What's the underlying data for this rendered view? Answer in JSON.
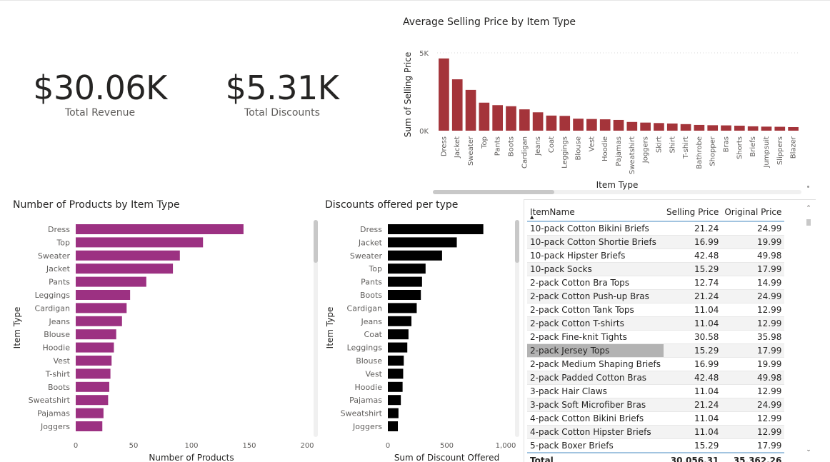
{
  "kpis": [
    {
      "value": "$30.06K",
      "label": "Total Revenue"
    },
    {
      "value": "$5.31K",
      "label": "Total Discounts"
    }
  ],
  "colors": {
    "avg_price": "#a4343a",
    "products": "#9c3182",
    "discounts": "#000000"
  },
  "chart_data": [
    {
      "type": "bar",
      "orientation": "vertical",
      "title": "Average Selling Price by Item Type",
      "xlabel": "Item Type",
      "ylabel": "Sum of Selling Price",
      "yticks": [
        "0K",
        "5K"
      ],
      "ylim": [
        0,
        5000
      ],
      "categories": [
        "Dress",
        "Jacket",
        "Sweater",
        "Top",
        "Pants",
        "Boots",
        "Cardigan",
        "Jeans",
        "Coat",
        "Leggings",
        "Blouse",
        "Vest",
        "Hoodie",
        "Pajamas",
        "Sweatshirt",
        "Joggers",
        "Skirt",
        "Shirt",
        "T-shirt",
        "Bathrobe",
        "Shopper",
        "Bras",
        "Shorts",
        "Briefs",
        "Jumpsuit",
        "Slippers",
        "Blazer"
      ],
      "values": [
        4640,
        3300,
        2620,
        1800,
        1640,
        1570,
        1370,
        1180,
        970,
        950,
        770,
        750,
        730,
        690,
        560,
        520,
        490,
        460,
        420,
        370,
        350,
        340,
        320,
        280,
        260,
        250,
        230
      ]
    },
    {
      "type": "bar",
      "orientation": "horizontal",
      "title": "Number of Products by Item Type",
      "xlabel": "Number of Products",
      "ylabel": "Item Type",
      "xticks": [
        0,
        50,
        100,
        150,
        200
      ],
      "xlim": [
        0,
        200
      ],
      "categories": [
        "Dress",
        "Top",
        "Sweater",
        "Jacket",
        "Pants",
        "Leggings",
        "Cardigan",
        "Jeans",
        "Blouse",
        "Hoodie",
        "Vest",
        "T-shirt",
        "Boots",
        "Sweatshirt",
        "Pajamas",
        "Joggers"
      ],
      "values": [
        145,
        110,
        90,
        84,
        61,
        47,
        44,
        40,
        35,
        33,
        31,
        30,
        29,
        28,
        24,
        23
      ]
    },
    {
      "type": "bar",
      "orientation": "horizontal",
      "title": "Discounts offered per type",
      "xlabel": "Sum of Discount Offered",
      "ylabel": "Item Type",
      "xticks": [
        0,
        500,
        1000
      ],
      "xtick_labels": [
        "0",
        "500",
        "1,000"
      ],
      "xlim": [
        0,
        1000
      ],
      "categories": [
        "Dress",
        "Jacket",
        "Sweater",
        "Top",
        "Pants",
        "Boots",
        "Cardigan",
        "Jeans",
        "Coat",
        "Leggings",
        "Blouse",
        "Vest",
        "Hoodie",
        "Pajamas",
        "Sweatshirt",
        "Joggers"
      ],
      "values": [
        810,
        585,
        460,
        320,
        290,
        280,
        245,
        200,
        175,
        165,
        135,
        130,
        125,
        110,
        90,
        85
      ]
    },
    {
      "type": "table",
      "columns": [
        "ItemName",
        "Selling Price",
        "Original Price"
      ],
      "rows": [
        [
          "10-pack Cotton Bikini Briefs",
          "21.24",
          "24.99"
        ],
        [
          "10-pack Cotton Shortie Briefs",
          "16.99",
          "19.99"
        ],
        [
          "10-pack Hipster Briefs",
          "42.48",
          "49.98"
        ],
        [
          "10-pack Socks",
          "15.29",
          "17.99"
        ],
        [
          "2-pack Cotton Bra Tops",
          "12.74",
          "14.99"
        ],
        [
          "2-pack Cotton Push-up Bras",
          "21.24",
          "24.99"
        ],
        [
          "2-pack Cotton Tank Tops",
          "11.04",
          "12.99"
        ],
        [
          "2-pack Cotton T-shirts",
          "11.04",
          "12.99"
        ],
        [
          "2-pack Fine-knit Tights",
          "30.58",
          "35.98"
        ],
        [
          "2-pack Jersey Tops",
          "15.29",
          "17.99"
        ],
        [
          "2-pack Medium Shaping Briefs",
          "16.99",
          "19.99"
        ],
        [
          "2-pack Padded Cotton Bras",
          "42.48",
          "49.98"
        ],
        [
          "3-pack Hair Claws",
          "11.04",
          "12.99"
        ],
        [
          "3-pack Soft Microfiber Bras",
          "21.24",
          "24.99"
        ],
        [
          "4-pack Cotton Bikini Briefs",
          "11.04",
          "12.99"
        ],
        [
          "4-pack Cotton Hipster Briefs",
          "11.04",
          "12.99"
        ],
        [
          "5-pack Boxer Briefs",
          "15.29",
          "17.99"
        ]
      ],
      "selected_row": 9,
      "total": [
        "Total",
        "30,056.31",
        "35,362.26"
      ]
    }
  ]
}
